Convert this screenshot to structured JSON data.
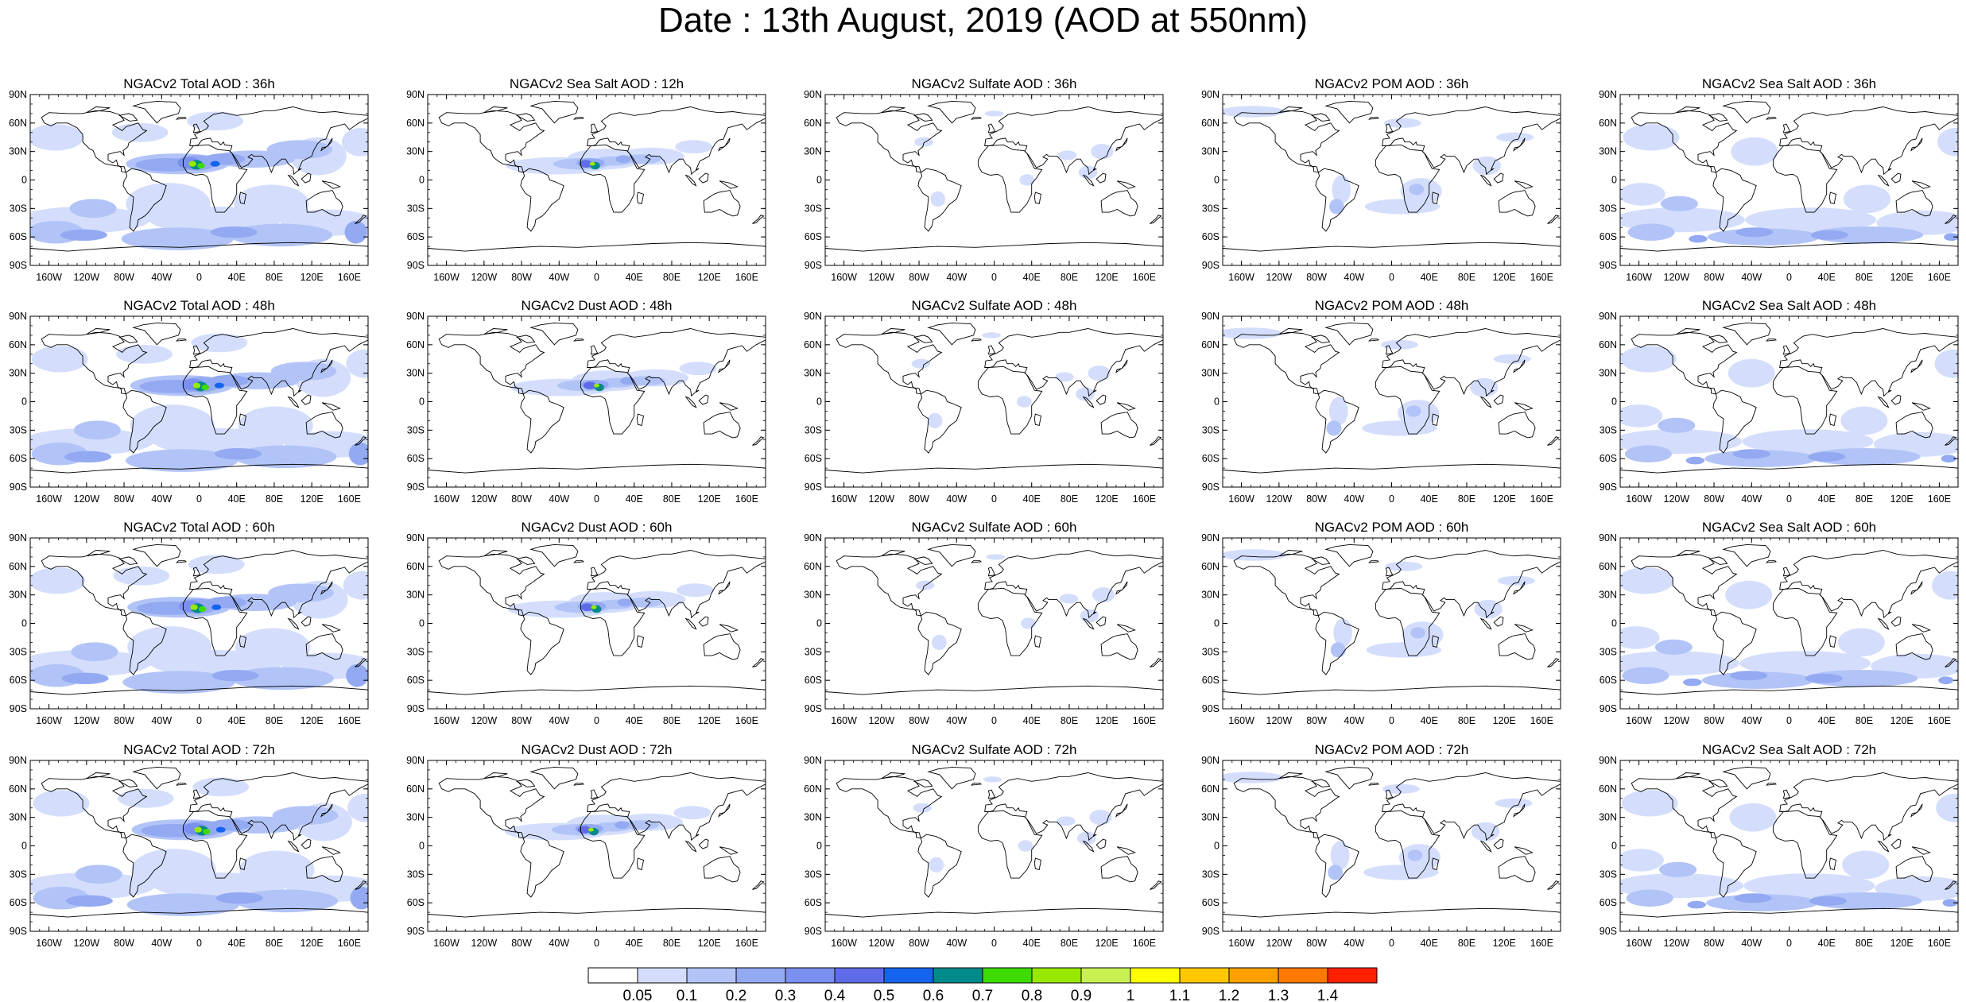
{
  "title": "Date : 13th August, 2019 (AOD at 550nm)",
  "panels": [
    [
      "NGACv2 Total AOD : 36h",
      "NGACv2 Sea Salt  AOD : 12h",
      "NGACv2 Sulfate AOD : 36h",
      "NGACv2 POM AOD : 36h",
      "NGACv2 Sea Salt  AOD : 36h"
    ],
    [
      "NGACv2 Total AOD : 48h",
      "NGACv2 Dust AOD : 48h",
      "NGACv2 Sulfate AOD : 48h",
      "NGACv2 POM AOD : 48h",
      "NGACv2 Sea Salt  AOD : 48h"
    ],
    [
      "NGACv2 Total AOD : 60h",
      "NGACv2 Dust AOD : 60h",
      "NGACv2 Sulfate AOD : 60h",
      "NGACv2 POM AOD : 60h",
      "NGACv2 Sea Salt  AOD : 60h"
    ],
    [
      "NGACv2 Total AOD : 72h",
      "NGACv2 Dust AOD : 72h",
      "NGACv2 Sulfate AOD : 72h",
      "NGACv2 POM AOD : 72h",
      "NGACv2 Sea Salt  AOD : 72h"
    ]
  ],
  "lat_labels": [
    "90N",
    "60N",
    "30N",
    "0",
    "30S",
    "60S",
    "90S"
  ],
  "lon_labels": [
    "160W",
    "120W",
    "80W",
    "40W",
    "0",
    "40E",
    "80E",
    "120E",
    "160E"
  ],
  "colorbar": {
    "labels": [
      "0.05",
      "0.1",
      "0.2",
      "0.3",
      "0.4",
      "0.5",
      "0.6",
      "0.7",
      "0.8",
      "0.9",
      "1",
      "1.1",
      "1.2",
      "1.3",
      "1.4"
    ],
    "colors": [
      "#ffffff",
      "#d4defc",
      "#b2c4f7",
      "#93a9f2",
      "#7b8ff0",
      "#5f6be8",
      "#1464f0",
      "#008a8a",
      "#3ddc00",
      "#98e800",
      "#c8f050",
      "#ffff00",
      "#ffc800",
      "#ffa000",
      "#ff7800",
      "#ff2000"
    ]
  }
}
